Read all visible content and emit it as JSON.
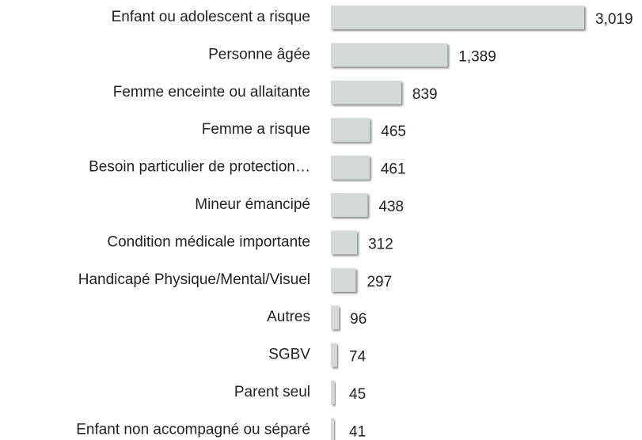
{
  "chart_data": {
    "type": "bar",
    "orientation": "horizontal",
    "color": "#d5d9d5",
    "categories": [
      "Enfant ou adolescent a risque",
      "Personne âgée",
      "Femme enceinte ou allaitante",
      "Femme a risque",
      "Besoin particulier de protection…",
      "Mineur émancipé",
      "Condition médicale importante",
      "Handicapé Physique/Mental/Visuel",
      "Autres",
      "SGBV",
      "Parent seul",
      "Enfant non accompagné ou séparé"
    ],
    "values": [
      3019,
      1389,
      839,
      465,
      461,
      438,
      312,
      297,
      96,
      74,
      45,
      41
    ],
    "value_labels": [
      "3,019",
      "1,389",
      "839",
      "465",
      "461",
      "438",
      "312",
      "297",
      "96",
      "74",
      "45",
      "41"
    ]
  }
}
